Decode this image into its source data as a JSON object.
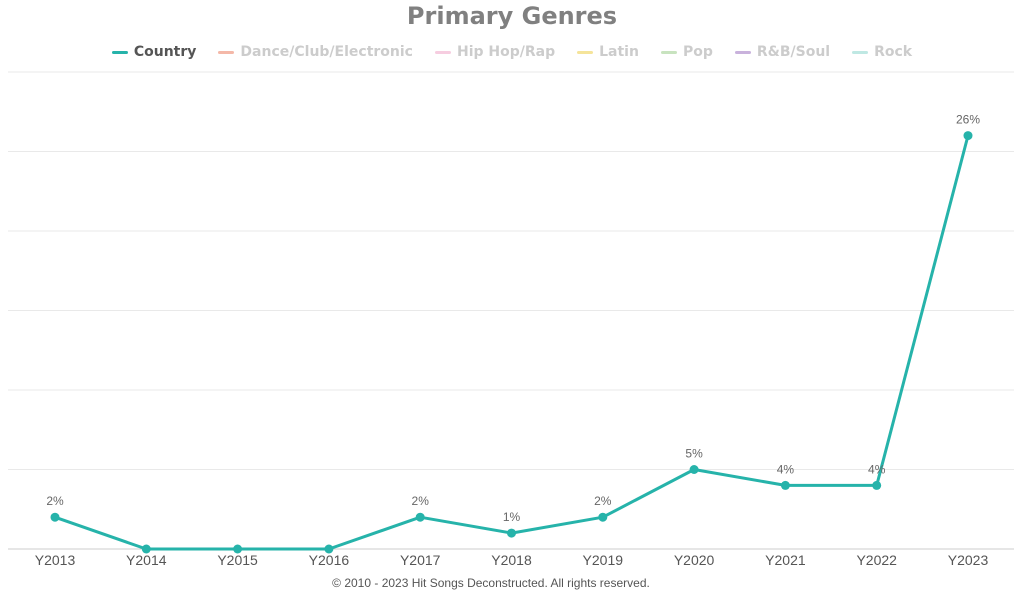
{
  "chart_data": {
    "type": "line",
    "title": "Primary Genres",
    "categories": [
      "Y2013",
      "Y2014",
      "Y2015",
      "Y2016",
      "Y2017",
      "Y2018",
      "Y2019",
      "Y2020",
      "Y2021",
      "Y2022",
      "Y2023"
    ],
    "series": [
      {
        "name": "Country",
        "color": "#26b3aa",
        "visible": true,
        "values": [
          2,
          0,
          0,
          0,
          2,
          1,
          2,
          5,
          4,
          4,
          26
        ],
        "labels": [
          "2%",
          null,
          null,
          null,
          "2%",
          "1%",
          "2%",
          "5%",
          "4%",
          "4%",
          "26%"
        ]
      },
      {
        "name": "Dance/Club/Electronic",
        "color": "#f4b8a8",
        "visible": false
      },
      {
        "name": "Hip Hop/Rap",
        "color": "#f6cde0",
        "visible": false
      },
      {
        "name": "Latin",
        "color": "#f5e49a",
        "visible": false
      },
      {
        "name": "Pop",
        "color": "#c8e3bf",
        "visible": false
      },
      {
        "name": "R&B/Soul",
        "color": "#c9b2dc",
        "visible": false
      },
      {
        "name": "Rock",
        "color": "#bfe8e3",
        "visible": false
      }
    ],
    "ylim": [
      0,
      30
    ],
    "grid": true,
    "legend_position": "top"
  },
  "footer": "© 2010 - 2023 Hit Songs Deconstructed. All rights reserved."
}
